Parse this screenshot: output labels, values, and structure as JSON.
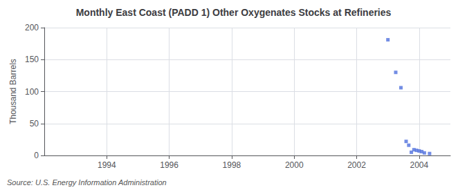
{
  "chart_data": {
    "type": "scatter",
    "title": "Monthly East Coast (PADD 1) Other Oxygenates Stocks at Refineries",
    "ylabel": "Thousand Barrels",
    "annotation": "Source: U.S. Energy Information Administration",
    "x": [
      2003.0,
      2003.25,
      2003.417,
      2003.583,
      2003.667,
      2003.75,
      2003.833,
      2003.917,
      2004.0,
      2004.083,
      2004.167,
      2004.333
    ],
    "values": [
      181,
      130,
      106,
      22,
      16,
      5,
      9,
      8,
      7,
      6,
      4,
      3
    ],
    "marker": "square",
    "xlim": [
      1992.0,
      2005.0
    ],
    "xticks": [
      1994,
      1996,
      1998,
      2000,
      2002,
      2004
    ],
    "ylim": [
      0,
      200
    ],
    "yticks": [
      0,
      50,
      100,
      150,
      200
    ],
    "grid": true
  }
}
